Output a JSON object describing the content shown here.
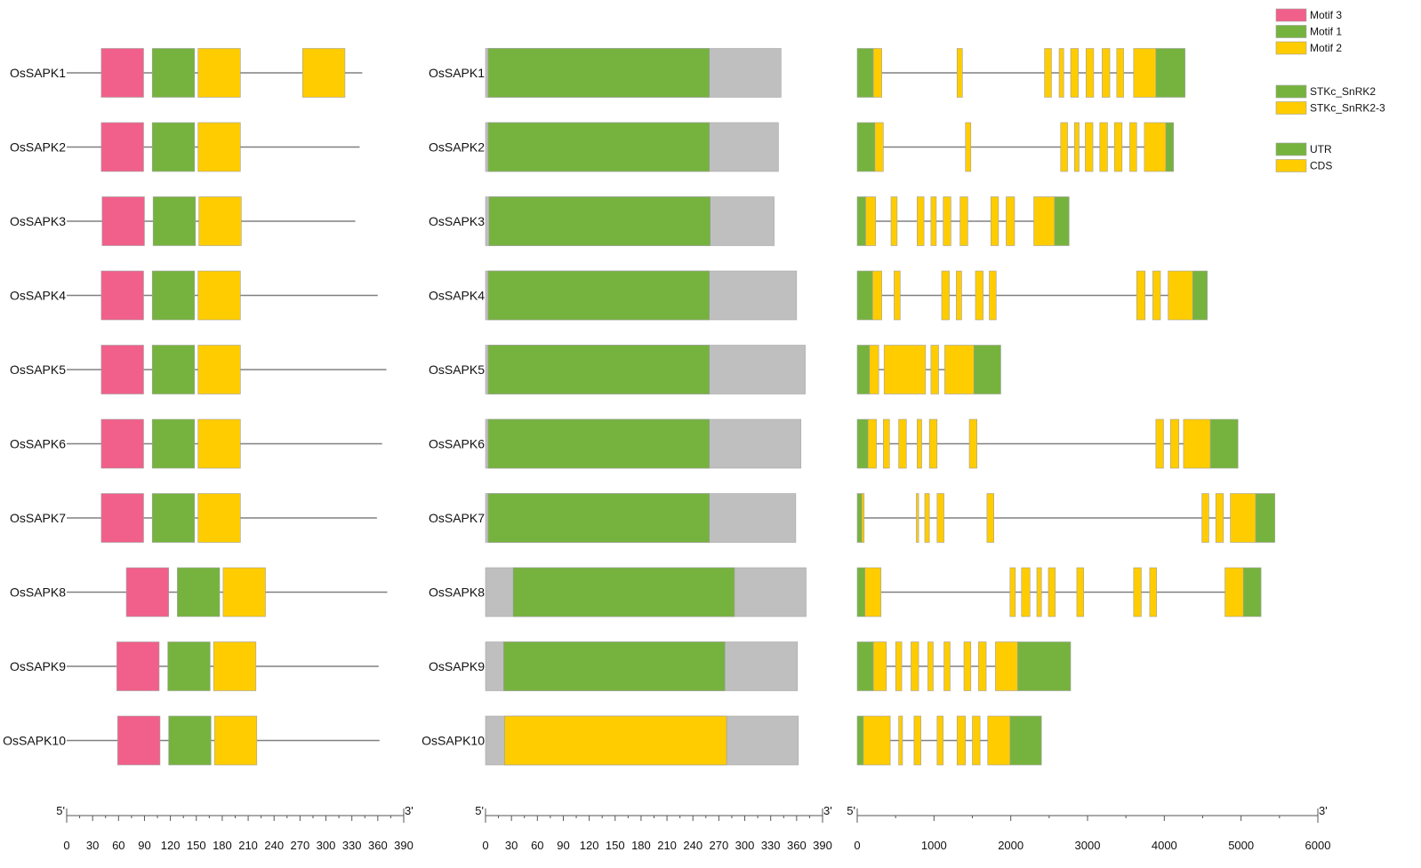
{
  "colors": {
    "motif3": "#F0608A",
    "motif1": "#76B33E",
    "motif2": "#FFCC00",
    "stkc_snrk2": "#76B33E",
    "stkc_snrk23": "#FFCC00",
    "background_domain": "#BFBFBF",
    "utr": "#76B33E",
    "cds": "#FFCC00",
    "line": "#808080",
    "axis": "#555555"
  },
  "genes": [
    "OsSAPK1",
    "OsSAPK2",
    "OsSAPK3",
    "OsSAPK4",
    "OsSAPK5",
    "OsSAPK6",
    "OsSAPK7",
    "OsSAPK8",
    "OsSAPK9",
    "OsSAPK10"
  ],
  "legend": {
    "motifs": [
      {
        "label": "Motif 3",
        "color_key": "motif3"
      },
      {
        "label": "Motif 1",
        "color_key": "motif1"
      },
      {
        "label": "Motif 2",
        "color_key": "motif2"
      }
    ],
    "domains": [
      {
        "label": "STKc_SnRK2",
        "color_key": "stkc_snrk2"
      },
      {
        "label": "STKc_SnRK2-3",
        "color_key": "stkc_snrk23"
      }
    ],
    "gene_parts": [
      {
        "label": "UTR",
        "color_key": "utr"
      },
      {
        "label": "CDS",
        "color_key": "cds"
      }
    ]
  },
  "axes": {
    "motif": {
      "start_label": "5'",
      "end_label": "3'",
      "min": 0,
      "max": 390,
      "ticks": [
        0,
        30,
        60,
        90,
        120,
        150,
        180,
        210,
        240,
        270,
        300,
        330,
        360,
        390
      ]
    },
    "domain": {
      "start_label": "5'",
      "end_label": "3'",
      "min": 0,
      "max": 390,
      "ticks": [
        0,
        30,
        60,
        90,
        120,
        150,
        180,
        210,
        240,
        270,
        300,
        330,
        360,
        390
      ]
    },
    "structure": {
      "start_label": "5'",
      "end_label": "3'",
      "min": 0,
      "max": 6000,
      "ticks": [
        0,
        1000,
        2000,
        3000,
        4000,
        5000,
        6000
      ]
    }
  },
  "chart_data": {
    "type": "gene-structure-diagram",
    "motif_panel": [
      {
        "gene": "OsSAPK1",
        "length": 342,
        "motifs": [
          {
            "motif": 3,
            "start": 40,
            "end": 89
          },
          {
            "motif": 1,
            "start": 99,
            "end": 148
          },
          {
            "motif": 2,
            "start": 152,
            "end": 201
          },
          {
            "motif": 2,
            "start": 273,
            "end": 322
          }
        ]
      },
      {
        "gene": "OsSAPK2",
        "length": 339,
        "motifs": [
          {
            "motif": 3,
            "start": 40,
            "end": 89
          },
          {
            "motif": 1,
            "start": 99,
            "end": 148
          },
          {
            "motif": 2,
            "start": 152,
            "end": 201
          }
        ]
      },
      {
        "gene": "OsSAPK3",
        "length": 334,
        "motifs": [
          {
            "motif": 3,
            "start": 41,
            "end": 90
          },
          {
            "motif": 1,
            "start": 100,
            "end": 149
          },
          {
            "motif": 2,
            "start": 153,
            "end": 202
          }
        ]
      },
      {
        "gene": "OsSAPK4",
        "length": 360,
        "motifs": [
          {
            "motif": 3,
            "start": 40,
            "end": 89
          },
          {
            "motif": 1,
            "start": 99,
            "end": 148
          },
          {
            "motif": 2,
            "start": 152,
            "end": 201
          }
        ]
      },
      {
        "gene": "OsSAPK5",
        "length": 370,
        "motifs": [
          {
            "motif": 3,
            "start": 40,
            "end": 89
          },
          {
            "motif": 1,
            "start": 99,
            "end": 148
          },
          {
            "motif": 2,
            "start": 152,
            "end": 201
          }
        ]
      },
      {
        "gene": "OsSAPK6",
        "length": 365,
        "motifs": [
          {
            "motif": 3,
            "start": 40,
            "end": 89
          },
          {
            "motif": 1,
            "start": 99,
            "end": 148
          },
          {
            "motif": 2,
            "start": 152,
            "end": 201
          }
        ]
      },
      {
        "gene": "OsSAPK7",
        "length": 359,
        "motifs": [
          {
            "motif": 3,
            "start": 40,
            "end": 89
          },
          {
            "motif": 1,
            "start": 99,
            "end": 148
          },
          {
            "motif": 2,
            "start": 152,
            "end": 201
          }
        ]
      },
      {
        "gene": "OsSAPK8",
        "length": 371,
        "motifs": [
          {
            "motif": 3,
            "start": 69,
            "end": 118
          },
          {
            "motif": 1,
            "start": 128,
            "end": 177
          },
          {
            "motif": 2,
            "start": 181,
            "end": 230
          }
        ]
      },
      {
        "gene": "OsSAPK9",
        "length": 361,
        "motifs": [
          {
            "motif": 3,
            "start": 58,
            "end": 107
          },
          {
            "motif": 1,
            "start": 117,
            "end": 166
          },
          {
            "motif": 2,
            "start": 170,
            "end": 219
          }
        ]
      },
      {
        "gene": "OsSAPK10",
        "length": 362,
        "motifs": [
          {
            "motif": 3,
            "start": 59,
            "end": 108
          },
          {
            "motif": 1,
            "start": 118,
            "end": 167
          },
          {
            "motif": 2,
            "start": 171,
            "end": 220
          }
        ]
      }
    ],
    "domain_panel": [
      {
        "gene": "OsSAPK1",
        "length": 342,
        "domain": {
          "type": "STKc_SnRK2",
          "start": 3,
          "end": 259
        }
      },
      {
        "gene": "OsSAPK2",
        "length": 339,
        "domain": {
          "type": "STKc_SnRK2",
          "start": 3,
          "end": 259
        }
      },
      {
        "gene": "OsSAPK3",
        "length": 334,
        "domain": {
          "type": "STKc_SnRK2",
          "start": 4,
          "end": 260
        }
      },
      {
        "gene": "OsSAPK4",
        "length": 360,
        "domain": {
          "type": "STKc_SnRK2",
          "start": 3,
          "end": 259
        }
      },
      {
        "gene": "OsSAPK5",
        "length": 370,
        "domain": {
          "type": "STKc_SnRK2",
          "start": 3,
          "end": 259
        }
      },
      {
        "gene": "OsSAPK6",
        "length": 365,
        "domain": {
          "type": "STKc_SnRK2",
          "start": 3,
          "end": 259
        }
      },
      {
        "gene": "OsSAPK7",
        "length": 359,
        "domain": {
          "type": "STKc_SnRK2",
          "start": 3,
          "end": 259
        }
      },
      {
        "gene": "OsSAPK8",
        "length": 371,
        "domain": {
          "type": "STKc_SnRK2",
          "start": 32,
          "end": 288
        }
      },
      {
        "gene": "OsSAPK9",
        "length": 361,
        "domain": {
          "type": "STKc_SnRK2",
          "start": 21,
          "end": 277
        }
      },
      {
        "gene": "OsSAPK10",
        "length": 362,
        "domain": {
          "type": "STKc_SnRK2-3",
          "start": 22,
          "end": 279
        }
      }
    ],
    "structure_panel": [
      {
        "gene": "OsSAPK1",
        "length": 4270,
        "parts": [
          {
            "t": "utr",
            "s": 0,
            "e": 210
          },
          {
            "t": "cds",
            "s": 210,
            "e": 320
          },
          {
            "t": "cds",
            "s": 1300,
            "e": 1370
          },
          {
            "t": "cds",
            "s": 2440,
            "e": 2530
          },
          {
            "t": "cds",
            "s": 2630,
            "e": 2690
          },
          {
            "t": "cds",
            "s": 2780,
            "e": 2880
          },
          {
            "t": "cds",
            "s": 2980,
            "e": 3080
          },
          {
            "t": "cds",
            "s": 3190,
            "e": 3290
          },
          {
            "t": "cds",
            "s": 3380,
            "e": 3470
          },
          {
            "t": "cds",
            "s": 3600,
            "e": 3890
          },
          {
            "t": "utr",
            "s": 3890,
            "e": 4270
          }
        ]
      },
      {
        "gene": "OsSAPK2",
        "length": 4120,
        "parts": [
          {
            "t": "utr",
            "s": 0,
            "e": 230
          },
          {
            "t": "cds",
            "s": 230,
            "e": 340
          },
          {
            "t": "cds",
            "s": 1410,
            "e": 1480
          },
          {
            "t": "cds",
            "s": 2650,
            "e": 2740
          },
          {
            "t": "cds",
            "s": 2830,
            "e": 2890
          },
          {
            "t": "cds",
            "s": 2970,
            "e": 3070
          },
          {
            "t": "cds",
            "s": 3160,
            "e": 3260
          },
          {
            "t": "cds",
            "s": 3350,
            "e": 3450
          },
          {
            "t": "cds",
            "s": 3550,
            "e": 3640
          },
          {
            "t": "cds",
            "s": 3740,
            "e": 4020
          },
          {
            "t": "utr",
            "s": 4020,
            "e": 4120
          }
        ]
      },
      {
        "gene": "OsSAPK3",
        "length": 2760,
        "parts": [
          {
            "t": "utr",
            "s": 0,
            "e": 110
          },
          {
            "t": "cds",
            "s": 110,
            "e": 240
          },
          {
            "t": "cds",
            "s": 440,
            "e": 520
          },
          {
            "t": "cds",
            "s": 780,
            "e": 870
          },
          {
            "t": "cds",
            "s": 960,
            "e": 1030
          },
          {
            "t": "cds",
            "s": 1120,
            "e": 1220
          },
          {
            "t": "cds",
            "s": 1340,
            "e": 1440
          },
          {
            "t": "cds",
            "s": 1740,
            "e": 1840
          },
          {
            "t": "cds",
            "s": 1940,
            "e": 2050
          },
          {
            "t": "cds",
            "s": 2300,
            "e": 2570
          },
          {
            "t": "utr",
            "s": 2570,
            "e": 2760
          }
        ]
      },
      {
        "gene": "OsSAPK4",
        "length": 4560,
        "parts": [
          {
            "t": "utr",
            "s": 0,
            "e": 200
          },
          {
            "t": "cds",
            "s": 200,
            "e": 320
          },
          {
            "t": "cds",
            "s": 480,
            "e": 560
          },
          {
            "t": "cds",
            "s": 1100,
            "e": 1200
          },
          {
            "t": "cds",
            "s": 1290,
            "e": 1360
          },
          {
            "t": "cds",
            "s": 1540,
            "e": 1640
          },
          {
            "t": "cds",
            "s": 1720,
            "e": 1810
          },
          {
            "t": "cds",
            "s": 3640,
            "e": 3750
          },
          {
            "t": "cds",
            "s": 3850,
            "e": 3950
          },
          {
            "t": "cds",
            "s": 4050,
            "e": 4370
          },
          {
            "t": "utr",
            "s": 4370,
            "e": 4560
          }
        ]
      },
      {
        "gene": "OsSAPK5",
        "length": 1870,
        "parts": [
          {
            "t": "utr",
            "s": 0,
            "e": 160
          },
          {
            "t": "cds",
            "s": 160,
            "e": 280
          },
          {
            "t": "cds",
            "s": 350,
            "e": 890
          },
          {
            "t": "cds",
            "s": 960,
            "e": 1060
          },
          {
            "t": "cds",
            "s": 1140,
            "e": 1520
          },
          {
            "t": "utr",
            "s": 1520,
            "e": 1870
          }
        ]
      },
      {
        "gene": "OsSAPK6",
        "length": 4960,
        "parts": [
          {
            "t": "utr",
            "s": 0,
            "e": 140
          },
          {
            "t": "cds",
            "s": 140,
            "e": 250
          },
          {
            "t": "cds",
            "s": 340,
            "e": 420
          },
          {
            "t": "cds",
            "s": 540,
            "e": 640
          },
          {
            "t": "cds",
            "s": 780,
            "e": 840
          },
          {
            "t": "cds",
            "s": 940,
            "e": 1040
          },
          {
            "t": "cds",
            "s": 1460,
            "e": 1560
          },
          {
            "t": "cds",
            "s": 3890,
            "e": 3990
          },
          {
            "t": "cds",
            "s": 4080,
            "e": 4190
          },
          {
            "t": "cds",
            "s": 4250,
            "e": 4600
          },
          {
            "t": "utr",
            "s": 4600,
            "e": 4960
          }
        ]
      },
      {
        "gene": "OsSAPK7",
        "length": 5440,
        "parts": [
          {
            "t": "utr",
            "s": 0,
            "e": 60
          },
          {
            "t": "cds",
            "s": 60,
            "e": 90
          },
          {
            "t": "cds",
            "s": 770,
            "e": 800
          },
          {
            "t": "cds",
            "s": 880,
            "e": 940
          },
          {
            "t": "cds",
            "s": 1040,
            "e": 1130
          },
          {
            "t": "cds",
            "s": 1690,
            "e": 1780
          },
          {
            "t": "cds",
            "s": 4490,
            "e": 4580
          },
          {
            "t": "cds",
            "s": 4670,
            "e": 4770
          },
          {
            "t": "cds",
            "s": 4860,
            "e": 5190
          },
          {
            "t": "utr",
            "s": 5190,
            "e": 5440
          }
        ]
      },
      {
        "gene": "OsSAPK8",
        "length": 5260,
        "parts": [
          {
            "t": "utr",
            "s": 0,
            "e": 100
          },
          {
            "t": "cds",
            "s": 100,
            "e": 310
          },
          {
            "t": "cds",
            "s": 1990,
            "e": 2060
          },
          {
            "t": "cds",
            "s": 2140,
            "e": 2250
          },
          {
            "t": "cds",
            "s": 2340,
            "e": 2400
          },
          {
            "t": "cds",
            "s": 2490,
            "e": 2580
          },
          {
            "t": "cds",
            "s": 2860,
            "e": 2950
          },
          {
            "t": "cds",
            "s": 3600,
            "e": 3700
          },
          {
            "t": "cds",
            "s": 3810,
            "e": 3900
          },
          {
            "t": "cds",
            "s": 4790,
            "e": 5030
          },
          {
            "t": "utr",
            "s": 5030,
            "e": 5260
          }
        ]
      },
      {
        "gene": "OsSAPK9",
        "length": 2780,
        "parts": [
          {
            "t": "utr",
            "s": 0,
            "e": 210
          },
          {
            "t": "cds",
            "s": 210,
            "e": 380
          },
          {
            "t": "cds",
            "s": 500,
            "e": 580
          },
          {
            "t": "cds",
            "s": 700,
            "e": 800
          },
          {
            "t": "cds",
            "s": 920,
            "e": 990
          },
          {
            "t": "cds",
            "s": 1130,
            "e": 1210
          },
          {
            "t": "cds",
            "s": 1390,
            "e": 1480
          },
          {
            "t": "cds",
            "s": 1580,
            "e": 1680
          },
          {
            "t": "cds",
            "s": 1800,
            "e": 2090
          },
          {
            "t": "utr",
            "s": 2090,
            "e": 2780
          }
        ]
      },
      {
        "gene": "OsSAPK10",
        "length": 2400,
        "parts": [
          {
            "t": "utr",
            "s": 0,
            "e": 80
          },
          {
            "t": "cds",
            "s": 80,
            "e": 430
          },
          {
            "t": "cds",
            "s": 540,
            "e": 590
          },
          {
            "t": "cds",
            "s": 740,
            "e": 830
          },
          {
            "t": "cds",
            "s": 1040,
            "e": 1120
          },
          {
            "t": "cds",
            "s": 1300,
            "e": 1410
          },
          {
            "t": "cds",
            "s": 1500,
            "e": 1600
          },
          {
            "t": "cds",
            "s": 1700,
            "e": 1990
          },
          {
            "t": "utr",
            "s": 1990,
            "e": 2400
          }
        ]
      }
    ]
  }
}
